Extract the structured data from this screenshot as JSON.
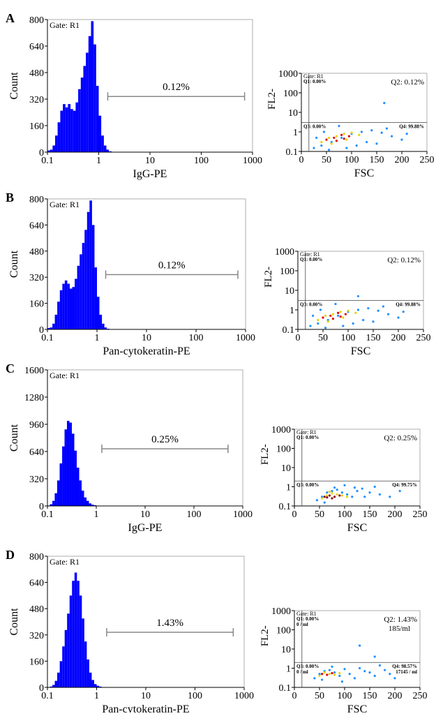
{
  "chart_data": [
    {
      "type": "histogram",
      "panel_label": "A",
      "annotation": "Gate: R1",
      "xlabel": "IgG-PE",
      "ylabel": "Count",
      "xscale": "log",
      "xlim": [
        0.1,
        1000
      ],
      "xticks": [
        0.1,
        1,
        10,
        100,
        1000
      ],
      "ylim": [
        0,
        800
      ],
      "yticks": [
        0,
        160,
        320,
        480,
        640,
        800
      ],
      "color": "#0000ff",
      "bins": [
        0.1,
        0.112,
        0.126,
        0.141,
        0.158,
        0.178,
        0.2,
        0.224,
        0.251,
        0.282,
        0.316,
        0.355,
        0.398,
        0.447,
        0.501,
        0.562,
        0.631,
        0.708,
        0.794,
        0.891,
        1,
        1.12,
        1.26,
        1.41,
        1.58,
        1.78,
        2
      ],
      "counts": [
        10,
        15,
        40,
        100,
        180,
        250,
        290,
        270,
        290,
        260,
        250,
        300,
        380,
        450,
        520,
        600,
        700,
        790,
        650,
        400,
        220,
        100,
        40,
        15,
        5,
        2
      ],
      "gate_range": [
        1.5,
        700
      ],
      "gate_label": "0.12%"
    },
    {
      "type": "scatter",
      "annotation": "Gate: R1",
      "xlabel": "FSC",
      "ylabel": "FL2-",
      "xlim": [
        0,
        250
      ],
      "xticks": [
        0,
        50,
        100,
        150,
        200,
        250
      ],
      "yscale": "log",
      "ylim": [
        0.1,
        1000
      ],
      "yticks": [
        0.1,
        1,
        10,
        100,
        1000
      ],
      "x_gate": 15,
      "y_gate": 3,
      "quadrant_labels": [
        "Q1: 0.00%",
        "Q2: 0.12%",
        "Q3: 0.00%",
        "Q4: 99.88%"
      ],
      "series": [
        {
          "color": "#1e90ff",
          "x": [
            25,
            40,
            60,
            80,
            100,
            120,
            140,
            160,
            180,
            200,
            30,
            55,
            90,
            130,
            170,
            210,
            45,
            75,
            110,
            150,
            165
          ],
          "y": [
            0.15,
            0.2,
            0.3,
            0.5,
            0.8,
            1,
            1.2,
            0.9,
            0.6,
            0.4,
            0.5,
            0.12,
            0.15,
            0.3,
            1.5,
            0.8,
            1,
            2,
            0.2,
            0.25,
            30
          ]
        },
        {
          "color": "#e6d200",
          "x": [
            40,
            55,
            70,
            85,
            100,
            115,
            60,
            90
          ],
          "y": [
            0.3,
            0.5,
            0.6,
            0.8,
            0.9,
            0.7,
            0.25,
            0.4
          ]
        },
        {
          "color": "#e00000",
          "x": [
            50,
            65,
            80,
            95,
            70,
            85
          ],
          "y": [
            0.4,
            0.5,
            0.7,
            0.6,
            0.35,
            0.45
          ]
        }
      ]
    },
    {
      "type": "histogram",
      "panel_label": "B",
      "annotation": "Gate: R1",
      "xlabel": "Pan-cytokeratin-PE",
      "ylabel": "Count",
      "xscale": "log",
      "xlim": [
        0.1,
        1000
      ],
      "xticks": [
        0.1,
        1,
        10,
        100,
        1000
      ],
      "ylim": [
        0,
        800
      ],
      "yticks": [
        0,
        160,
        320,
        480,
        640,
        800
      ],
      "color": "#0000ff",
      "bins": [
        0.1,
        0.112,
        0.126,
        0.141,
        0.158,
        0.178,
        0.2,
        0.224,
        0.251,
        0.282,
        0.316,
        0.355,
        0.398,
        0.447,
        0.501,
        0.562,
        0.631,
        0.708,
        0.794,
        0.891,
        1,
        1.12,
        1.26,
        1.41,
        1.58,
        1.78,
        2
      ],
      "counts": [
        8,
        12,
        35,
        90,
        170,
        240,
        280,
        300,
        280,
        250,
        260,
        310,
        390,
        460,
        530,
        610,
        720,
        790,
        640,
        380,
        200,
        90,
        35,
        12,
        4,
        2
      ],
      "gate_range": [
        1.5,
        700
      ],
      "gate_label": "0.12%"
    },
    {
      "type": "scatter",
      "annotation": "Gate: R1",
      "xlabel": "FSC",
      "ylabel": "FL2-",
      "xlim": [
        0,
        250
      ],
      "xticks": [
        0,
        50,
        100,
        150,
        200,
        250
      ],
      "yscale": "log",
      "ylim": [
        0.1,
        1000
      ],
      "yticks": [
        0.1,
        1,
        10,
        100,
        1000
      ],
      "x_gate": 15,
      "y_gate": 3,
      "quadrant_labels": [
        "Q1: 0.00%",
        "Q2: 0.12%",
        "Q3: 0.00%",
        "Q4: 99.88%"
      ],
      "series": [
        {
          "color": "#1e90ff",
          "x": [
            25,
            40,
            60,
            80,
            100,
            120,
            140,
            160,
            180,
            200,
            30,
            55,
            90,
            130,
            170,
            210,
            45,
            75,
            110,
            150,
            120
          ],
          "y": [
            0.15,
            0.2,
            0.3,
            0.5,
            0.8,
            1,
            1.2,
            0.9,
            0.6,
            0.4,
            0.5,
            0.12,
            0.15,
            0.3,
            1.5,
            0.8,
            1,
            2,
            0.2,
            0.25,
            5
          ]
        },
        {
          "color": "#e6d200",
          "x": [
            40,
            55,
            70,
            85,
            100,
            115,
            60,
            90
          ],
          "y": [
            0.3,
            0.5,
            0.6,
            0.8,
            0.9,
            0.7,
            0.25,
            0.4
          ]
        },
        {
          "color": "#e00000",
          "x": [
            50,
            65,
            80,
            95,
            70,
            85
          ],
          "y": [
            0.4,
            0.5,
            0.7,
            0.6,
            0.35,
            0.45
          ]
        }
      ]
    },
    {
      "type": "histogram",
      "panel_label": "C",
      "annotation": "Gate: R1",
      "xlabel": "IgG-PE",
      "ylabel": "Count",
      "xscale": "log",
      "xlim": [
        0.1,
        1000
      ],
      "xticks": [
        0.1,
        1,
        10,
        100,
        1000
      ],
      "ylim": [
        0,
        1600
      ],
      "yticks": [
        0,
        320,
        640,
        960,
        1280,
        1600
      ],
      "color": "#0000ff",
      "bins": [
        0.1,
        0.112,
        0.126,
        0.141,
        0.158,
        0.178,
        0.2,
        0.224,
        0.251,
        0.282,
        0.316,
        0.355,
        0.398,
        0.447,
        0.501,
        0.562,
        0.631,
        0.708,
        0.794,
        0.891,
        1,
        1.12,
        1.26,
        1.41,
        1.58,
        1.78,
        2
      ],
      "counts": [
        5,
        20,
        60,
        150,
        300,
        500,
        700,
        900,
        1000,
        980,
        850,
        650,
        450,
        300,
        180,
        100,
        60,
        30,
        15,
        8,
        4,
        2,
        1,
        0,
        0,
        0
      ],
      "gate_range": [
        1.3,
        500
      ],
      "gate_label": "0.25%"
    },
    {
      "type": "scatter",
      "annotation": "Gate: R1",
      "xlabel": "FSC",
      "ylabel": "FL2-",
      "xlim": [
        0,
        250
      ],
      "xticks": [
        0,
        50,
        100,
        150,
        200,
        250
      ],
      "yscale": "log",
      "ylim": [
        0.1,
        1000
      ],
      "yticks": [
        0.1,
        1,
        10,
        100,
        1000
      ],
      "x_gate": 15,
      "y_gate": 2,
      "quadrant_labels": [
        "Q1: 0.00%",
        "Q2: 0.25%",
        "Q3: 0.00%",
        "Q4: 99.75%"
      ],
      "series": [
        {
          "color": "#1e90ff",
          "x": [
            45,
            55,
            65,
            75,
            85,
            95,
            105,
            115,
            125,
            135,
            150,
            170,
            190,
            60,
            80,
            100,
            120,
            140,
            160,
            210
          ],
          "y": [
            0.2,
            0.3,
            0.5,
            0.6,
            0.7,
            0.5,
            0.4,
            0.3,
            0.6,
            0.8,
            0.5,
            0.4,
            0.3,
            0.15,
            0.9,
            1.2,
            0.9,
            0.3,
            1,
            0.6
          ]
        },
        {
          "color": "#e6d200",
          "x": [
            55,
            65,
            75,
            85,
            95,
            105,
            70
          ],
          "y": [
            0.25,
            0.35,
            0.45,
            0.4,
            0.35,
            0.3,
            0.55
          ]
        },
        {
          "color": "#8b0000",
          "x": [
            60,
            70,
            80,
            90,
            75,
            65
          ],
          "y": [
            0.3,
            0.35,
            0.3,
            0.35,
            0.25,
            0.28
          ]
        }
      ]
    },
    {
      "type": "histogram",
      "panel_label": "D",
      "annotation": "Gate: R1",
      "xlabel": "Pan-cytokeratin-PE",
      "ylabel": "Count",
      "xscale": "log",
      "xlim": [
        0.1,
        1000
      ],
      "xticks": [
        0.1,
        1,
        10,
        100,
        1000
      ],
      "ylim": [
        0,
        800
      ],
      "yticks": [
        0,
        160,
        320,
        480,
        640,
        800
      ],
      "color": "#0000ff",
      "bins": [
        0.1,
        0.112,
        0.126,
        0.141,
        0.158,
        0.178,
        0.2,
        0.224,
        0.251,
        0.282,
        0.316,
        0.355,
        0.398,
        0.447,
        0.501,
        0.562,
        0.631,
        0.708,
        0.794,
        0.891,
        1,
        1.12,
        1.26,
        1.41,
        1.58,
        1.78,
        2
      ],
      "counts": [
        2,
        5,
        15,
        40,
        90,
        160,
        250,
        350,
        450,
        560,
        650,
        700,
        650,
        560,
        420,
        280,
        170,
        90,
        45,
        20,
        10,
        5,
        2,
        1,
        0,
        0
      ],
      "gate_range": [
        1.6,
        600
      ],
      "gate_label": "1.43%"
    },
    {
      "type": "scatter",
      "annotation": "Gate: R1",
      "xlabel": "FSC",
      "ylabel": "FL2-",
      "xlim": [
        0,
        250
      ],
      "xticks": [
        0,
        50,
        100,
        150,
        200,
        250
      ],
      "yscale": "log",
      "ylim": [
        0.1,
        1000
      ],
      "yticks": [
        0.1,
        1,
        10,
        100,
        1000
      ],
      "x_gate": 15,
      "y_gate": 2,
      "quadrant_labels": [
        "Q1: 0.00%",
        "Q2: 1.43%",
        "Q3: 0.00%",
        "Q4: 98.57%"
      ],
      "quadrant_counts": [
        "0 / ml",
        "185/ml",
        "0 / ml",
        "17145 / ml"
      ],
      "series": [
        {
          "color": "#1e90ff",
          "x": [
            40,
            50,
            60,
            70,
            80,
            90,
            100,
            110,
            120,
            140,
            160,
            180,
            200,
            55,
            75,
            95,
            130,
            150,
            170,
            190,
            130,
            160
          ],
          "y": [
            0.3,
            0.5,
            0.7,
            0.8,
            0.6,
            0.4,
            0.9,
            0.5,
            0.3,
            0.7,
            0.4,
            0.8,
            0.3,
            0.25,
            1.2,
            0.2,
            1,
            0.6,
            1.4,
            0.5,
            15,
            4
          ]
        },
        {
          "color": "#e6d200",
          "x": [
            50,
            60,
            70,
            80,
            90
          ],
          "y": [
            0.4,
            0.6,
            0.5,
            0.45,
            0.55
          ]
        },
        {
          "color": "#e00000",
          "x": [
            55,
            65,
            75
          ],
          "y": [
            0.5,
            0.45,
            0.55
          ]
        }
      ]
    }
  ]
}
